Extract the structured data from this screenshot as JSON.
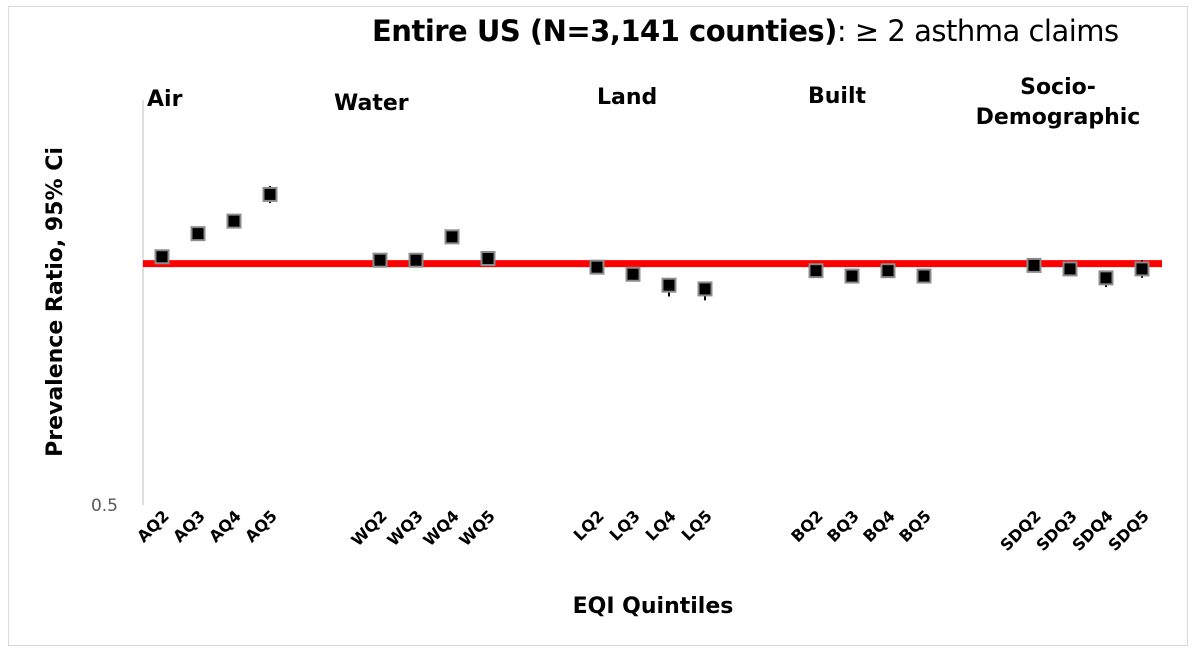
{
  "title_bold": "Entire US (N=3,141 counties)",
  "title_rest": ":  ≥ 2 asthma claims",
  "chart_data": {
    "type": "scatter",
    "title": "Entire US (N=3,141 counties):  ≥ 2 asthma claims",
    "xlabel": "EQI Quintiles",
    "ylabel": "Prevalence Ratio, 95% Ci",
    "y_scale": "log",
    "ylim": [
      0.5,
      1.6
    ],
    "ytick_labels": [
      "0.5"
    ],
    "reference_line": {
      "y": 1.0,
      "color": "#ff0000"
    },
    "marker_color": "#000000",
    "groups": [
      {
        "label": "Air",
        "points": [
          {
            "x": "AQ2",
            "y": 1.02,
            "low": 1.0,
            "high": 1.04
          },
          {
            "x": "AQ3",
            "y": 1.09,
            "low": 1.07,
            "high": 1.11
          },
          {
            "x": "AQ4",
            "y": 1.13,
            "low": 1.11,
            "high": 1.15
          },
          {
            "x": "AQ5",
            "y": 1.22,
            "low": 1.19,
            "high": 1.25
          }
        ]
      },
      {
        "label": "Water",
        "points": [
          {
            "x": "WQ2",
            "y": 1.01,
            "low": 0.99,
            "high": 1.03
          },
          {
            "x": "WQ3",
            "y": 1.01,
            "low": 0.99,
            "high": 1.03
          },
          {
            "x": "WQ4",
            "y": 1.08,
            "low": 1.06,
            "high": 1.1
          },
          {
            "x": "WQ5",
            "y": 1.015,
            "low": 0.995,
            "high": 1.035
          }
        ]
      },
      {
        "label": "Land",
        "points": [
          {
            "x": "LQ2",
            "y": 0.99,
            "low": 0.97,
            "high": 1.01
          },
          {
            "x": "LQ3",
            "y": 0.97,
            "low": 0.95,
            "high": 0.99
          },
          {
            "x": "LQ4",
            "y": 0.94,
            "low": 0.91,
            "high": 0.96
          },
          {
            "x": "LQ5",
            "y": 0.93,
            "low": 0.9,
            "high": 0.95
          }
        ]
      },
      {
        "label": "Built",
        "points": [
          {
            "x": "BQ2",
            "y": 0.98,
            "low": 0.96,
            "high": 1.0
          },
          {
            "x": "BQ3",
            "y": 0.965,
            "low": 0.945,
            "high": 0.985
          },
          {
            "x": "BQ4",
            "y": 0.98,
            "low": 0.96,
            "high": 1.0
          },
          {
            "x": "BQ5",
            "y": 0.965,
            "low": 0.945,
            "high": 0.985
          }
        ]
      },
      {
        "label": "Socio-\nDemographic",
        "points": [
          {
            "x": "SDQ2",
            "y": 0.995,
            "low": 0.975,
            "high": 1.015
          },
          {
            "x": "SDQ3",
            "y": 0.985,
            "low": 0.965,
            "high": 1.005
          },
          {
            "x": "SDQ4",
            "y": 0.96,
            "low": 0.935,
            "high": 0.98
          },
          {
            "x": "SDQ5",
            "y": 0.985,
            "low": 0.96,
            "high": 1.01
          }
        ]
      }
    ]
  }
}
